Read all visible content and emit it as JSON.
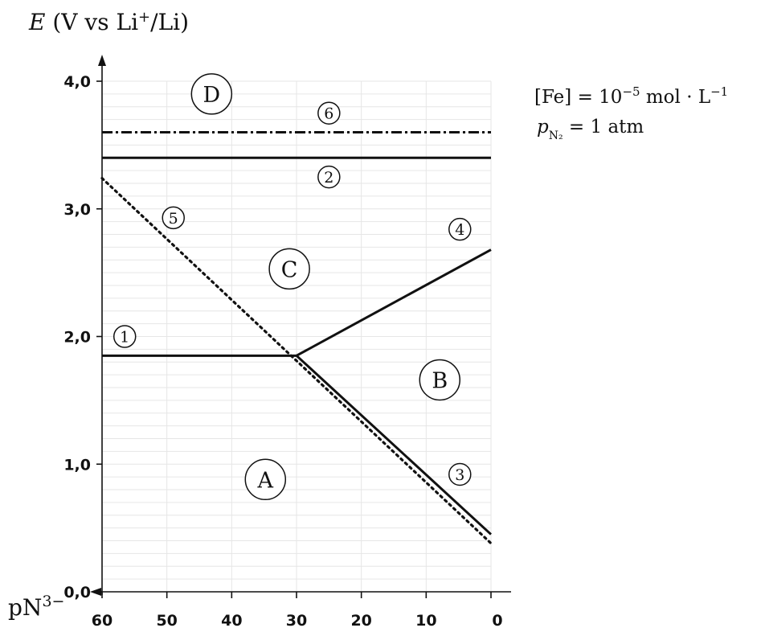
{
  "chart_data": {
    "type": "line",
    "title": "",
    "ylabel_var": "E",
    "ylabel_unit_prefix": " (V vs Li",
    "ylabel_sup": "+",
    "ylabel_unit_suffix": "/Li)",
    "xlabel_base": "pN",
    "xlabel_sup": "3−",
    "xlim": [
      60,
      0
    ],
    "ylim": [
      0.0,
      4.0
    ],
    "x_reversed": true,
    "grid": true,
    "x_ticks": [
      60,
      50,
      40,
      30,
      20,
      10,
      0
    ],
    "x_tick_labels": [
      "60",
      "50",
      "40",
      "30",
      "20",
      "10",
      "0"
    ],
    "y_ticks": [
      0.0,
      1.0,
      2.0,
      3.0,
      4.0
    ],
    "y_tick_labels": [
      "0,0",
      "1,0",
      "2,0",
      "3,0",
      "4,0"
    ],
    "series": [
      {
        "label_no": "1",
        "style": "solid",
        "x": [
          60,
          30
        ],
        "y": [
          1.85,
          1.85
        ]
      },
      {
        "label_no": "2",
        "style": "solid",
        "x": [
          60,
          0
        ],
        "y": [
          3.4,
          3.4
        ]
      },
      {
        "label_no": "3",
        "style": "solid",
        "x": [
          30,
          0
        ],
        "y": [
          1.85,
          0.45
        ]
      },
      {
        "label_no": "4",
        "style": "solid",
        "x": [
          30,
          0
        ],
        "y": [
          1.85,
          2.68
        ]
      },
      {
        "label_no": "5",
        "style": "dotted",
        "x": [
          60,
          0
        ],
        "y": [
          3.24,
          0.38
        ]
      },
      {
        "label_no": "6",
        "style": "dashdot",
        "x": [
          60,
          0
        ],
        "y": [
          3.6,
          3.6
        ]
      }
    ],
    "line_labels": [
      {
        "text": "1",
        "x": 56.5,
        "y": 2.0
      },
      {
        "text": "2",
        "x": 25.0,
        "y": 3.25
      },
      {
        "text": "3",
        "x": 4.8,
        "y": 0.92
      },
      {
        "text": "4",
        "x": 4.8,
        "y": 2.84
      },
      {
        "text": "5",
        "x": 49.0,
        "y": 2.93
      },
      {
        "text": "6",
        "x": 25.0,
        "y": 3.75
      }
    ],
    "regions": [
      {
        "text": "A",
        "x": 34.8,
        "y": 0.88
      },
      {
        "text": "B",
        "x": 7.9,
        "y": 1.66
      },
      {
        "text": "C",
        "x": 31.1,
        "y": 2.53
      },
      {
        "text": "D",
        "x": 43.1,
        "y": 3.9
      }
    ],
    "conditions": {
      "fe_bracket": "[Fe]",
      "fe_eq": " = 10",
      "fe_exp": "−5",
      "fe_unit": " mol · L",
      "fe_unit_exp": "−1",
      "p_var": "p",
      "p_sub": "N₂",
      "p_val": " = 1 atm"
    }
  }
}
